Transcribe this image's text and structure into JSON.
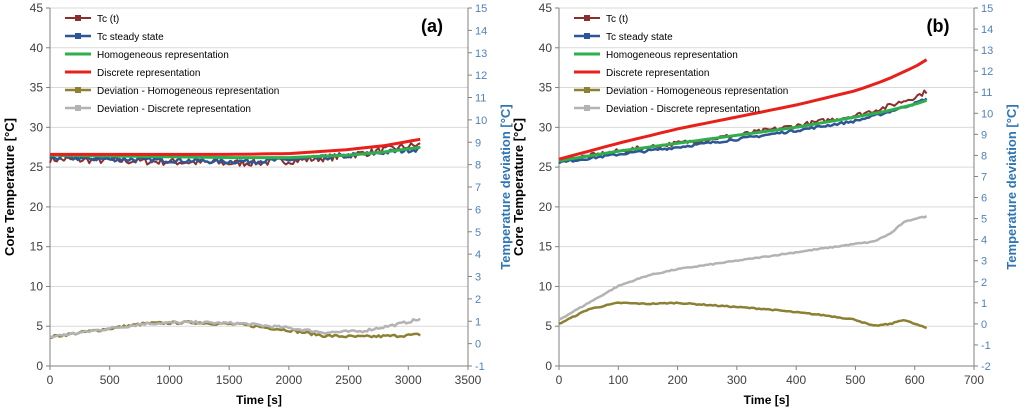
{
  "chart_data": [
    {
      "type": "line",
      "panel_label": "(a)",
      "xlabel": "Time [s]",
      "ylabel": "Core Temperature [°C]",
      "y2label": "Temperature deviation [°C]",
      "xlim": [
        0,
        3500
      ],
      "ylim": [
        0,
        45
      ],
      "y2lim": [
        -1,
        15
      ],
      "xticks": [
        0,
        500,
        1000,
        1500,
        2000,
        2500,
        3000,
        3500
      ],
      "yticks": [
        0,
        5,
        10,
        15,
        20,
        25,
        30,
        35,
        40,
        45
      ],
      "y2ticks": [
        -1,
        0,
        1,
        2,
        3,
        4,
        5,
        6,
        7,
        8,
        9,
        10,
        11,
        12,
        13,
        14,
        15
      ],
      "legend": [
        "Tc (t)",
        "Tc steady state",
        "Homogeneous representation",
        "Discrete representation",
        "Deviation - Homogeneous representation",
        "Deviation - Discrete representation"
      ],
      "series": [
        {
          "name": "Tc (t)",
          "axis": "left",
          "noise": 0.9,
          "color": "#8b2e2e",
          "width": 2,
          "x": [
            0,
            300,
            600,
            900,
            1200,
            1500,
            1800,
            2100,
            2400,
            2700,
            2900,
            3100
          ],
          "values": [
            26.0,
            25.9,
            25.8,
            25.7,
            25.6,
            25.5,
            25.6,
            25.9,
            26.3,
            26.9,
            27.4,
            27.8
          ]
        },
        {
          "name": "Tc steady state",
          "axis": "left",
          "noise": 0.6,
          "color": "#2e5596",
          "width": 2.5,
          "x": [
            0,
            300,
            600,
            900,
            1200,
            1500,
            1800,
            2100,
            2400,
            2700,
            2900,
            3100
          ],
          "values": [
            26.2,
            26.1,
            26.0,
            25.9,
            25.8,
            25.7,
            25.8,
            26.0,
            26.3,
            26.7,
            27.0,
            27.3
          ]
        },
        {
          "name": "Homogeneous representation",
          "axis": "left",
          "noise": 0,
          "color": "#2db04b",
          "width": 3,
          "x": [
            0,
            500,
            1000,
            1500,
            2000,
            2500,
            2800,
            3100
          ],
          "values": [
            26.5,
            26.4,
            26.3,
            26.2,
            26.2,
            26.5,
            26.9,
            27.5
          ]
        },
        {
          "name": "Discrete representation",
          "axis": "left",
          "noise": 0,
          "color": "#e8201c",
          "width": 3,
          "x": [
            0,
            500,
            1000,
            1500,
            2000,
            2500,
            2800,
            3100
          ],
          "values": [
            26.6,
            26.6,
            26.6,
            26.6,
            26.7,
            27.2,
            27.7,
            28.5
          ]
        },
        {
          "name": "Deviation - Homogeneous representation",
          "axis": "right",
          "noise": 0.12,
          "color": "#8c8034",
          "width": 2.5,
          "x": [
            0,
            400,
            800,
            1200,
            1600,
            2000,
            2300,
            2600,
            2900,
            3100
          ],
          "values": [
            0.3,
            0.6,
            0.9,
            0.95,
            0.85,
            0.6,
            0.35,
            0.3,
            0.35,
            0.4
          ]
        },
        {
          "name": "Deviation - Discrete representation",
          "axis": "right",
          "noise": 0.12,
          "color": "#b3b3b3",
          "width": 2.5,
          "x": [
            0,
            400,
            800,
            1200,
            1600,
            2000,
            2300,
            2600,
            2900,
            3100
          ],
          "values": [
            0.3,
            0.6,
            0.9,
            0.95,
            0.9,
            0.7,
            0.5,
            0.55,
            0.85,
            1.1
          ]
        }
      ]
    },
    {
      "type": "line",
      "panel_label": "(b)",
      "xlabel": "Time [s]",
      "ylabel": "Core Temperature [°C]",
      "y2label": "Temperature deviation [°C]",
      "xlim": [
        0,
        700
      ],
      "ylim": [
        0,
        45
      ],
      "y2lim": [
        -2,
        15
      ],
      "xticks": [
        0,
        100,
        200,
        300,
        400,
        500,
        600,
        700
      ],
      "yticks": [
        0,
        5,
        10,
        15,
        20,
        25,
        30,
        35,
        40,
        45
      ],
      "y2ticks": [
        -2,
        -1,
        0,
        1,
        2,
        3,
        4,
        5,
        6,
        7,
        8,
        9,
        10,
        11,
        12,
        13,
        14,
        15
      ],
      "legend": [
        "Tc (t)",
        "Tc steady state",
        "Homogeneous representation",
        "Discrete representation",
        "Deviation - Homogeneous representation",
        "Deviation - Discrete representation"
      ],
      "series": [
        {
          "name": "Tc (t)",
          "axis": "left",
          "noise": 0.6,
          "color": "#8b2e2e",
          "width": 2,
          "x": [
            0,
            100,
            200,
            300,
            400,
            500,
            550,
            600,
            620
          ],
          "values": [
            25.8,
            27.0,
            28.0,
            29.0,
            30.2,
            31.5,
            32.5,
            33.8,
            34.5
          ]
        },
        {
          "name": "Tc steady state",
          "axis": "left",
          "noise": 0.3,
          "color": "#2e5596",
          "width": 2.5,
          "x": [
            0,
            100,
            200,
            300,
            400,
            500,
            550,
            600,
            620
          ],
          "values": [
            25.6,
            26.6,
            27.5,
            28.5,
            29.6,
            30.8,
            31.8,
            33.0,
            33.6
          ]
        },
        {
          "name": "Homogeneous representation",
          "axis": "left",
          "noise": 0,
          "color": "#2db04b",
          "width": 3,
          "x": [
            0,
            100,
            200,
            300,
            400,
            500,
            550,
            600,
            620
          ],
          "values": [
            25.8,
            27.0,
            28.0,
            29.0,
            30.0,
            31.3,
            32.0,
            32.9,
            33.4
          ]
        },
        {
          "name": "Discrete representation",
          "axis": "left",
          "noise": 0,
          "color": "#e8201c",
          "width": 3,
          "x": [
            0,
            100,
            200,
            300,
            400,
            500,
            550,
            600,
            620
          ],
          "values": [
            26.0,
            28.0,
            29.8,
            31.3,
            32.8,
            34.6,
            35.9,
            37.6,
            38.5
          ]
        },
        {
          "name": "Deviation - Homogeneous representation",
          "axis": "right",
          "noise": 0.05,
          "color": "#8c8034",
          "width": 2.5,
          "x": [
            0,
            50,
            100,
            150,
            200,
            250,
            300,
            350,
            400,
            450,
            500,
            530,
            560,
            580,
            600,
            620
          ],
          "values": [
            0.0,
            0.7,
            1.0,
            0.95,
            1.0,
            0.9,
            0.8,
            0.7,
            0.55,
            0.4,
            0.2,
            -0.1,
            0.0,
            0.2,
            0.0,
            -0.2
          ]
        },
        {
          "name": "Deviation - Discrete representation",
          "axis": "right",
          "noise": 0.05,
          "color": "#b3b3b3",
          "width": 2.5,
          "x": [
            0,
            50,
            100,
            150,
            200,
            250,
            300,
            350,
            400,
            450,
            500,
            530,
            560,
            580,
            600,
            620
          ],
          "values": [
            0.2,
            1.0,
            1.8,
            2.3,
            2.6,
            2.8,
            3.0,
            3.2,
            3.4,
            3.6,
            3.8,
            3.9,
            4.3,
            4.8,
            5.0,
            5.1
          ]
        }
      ]
    }
  ]
}
